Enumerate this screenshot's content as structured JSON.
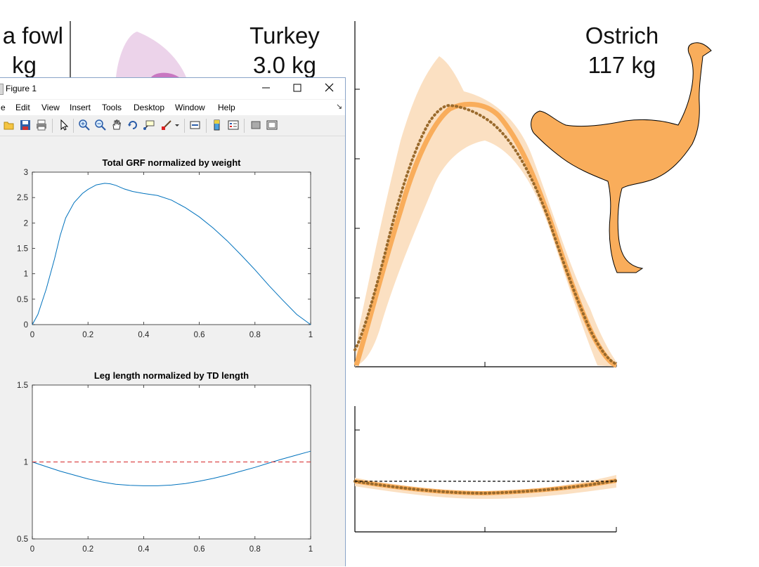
{
  "background": {
    "labels": [
      {
        "name": "guinea-fowl",
        "line1": "a fowl",
        "line2": "kg"
      },
      {
        "name": "turkey",
        "line1": "Turkey",
        "line2": "3.0 kg"
      },
      {
        "name": "ostrich",
        "line1": "Ostrich",
        "line2": "117 kg"
      }
    ],
    "colors": {
      "ostrich_fill": "#f9ad5b",
      "ostrich_band": "#fbe0c2",
      "ostrich_dots": "#9a6a2c",
      "turkey_fill": "#ecd3ea",
      "turkey_core": "#c877c1"
    }
  },
  "window": {
    "title": "Figure 1",
    "controls": [
      "minimize",
      "maximize",
      "close"
    ],
    "menu": [
      "e",
      "Edit",
      "View",
      "Insert",
      "Tools",
      "Desktop",
      "Window",
      "Help"
    ],
    "toolbar_icons": [
      "open-folder-icon",
      "save-icon",
      "print-icon",
      "pointer-icon",
      "zoom-in-icon",
      "zoom-out-icon",
      "pan-hand-icon",
      "rotate-3d-icon",
      "data-cursor-icon",
      "brush-icon",
      "brush-dropdown-icon",
      "link-plot-icon",
      "insert-colorbar-icon",
      "insert-legend-icon",
      "hide-plot-tools-icon",
      "show-plot-tools-icon"
    ]
  },
  "chart_data": [
    {
      "type": "line",
      "title": "Total GRF normalized by weight",
      "xlabel": "",
      "ylabel": "",
      "xlim": [
        0,
        1
      ],
      "ylim": [
        0,
        3
      ],
      "xticks": [
        "0",
        "0.2",
        "0.4",
        "0.6",
        "0.8",
        "1"
      ],
      "yticks": [
        "0",
        "0.5",
        "1",
        "1.5",
        "2",
        "2.5",
        "3"
      ],
      "series": [
        {
          "color": "#0072bd",
          "x": [
            0,
            0.02,
            0.05,
            0.08,
            0.1,
            0.12,
            0.15,
            0.18,
            0.2,
            0.23,
            0.26,
            0.28,
            0.3,
            0.33,
            0.36,
            0.4,
            0.45,
            0.5,
            0.55,
            0.6,
            0.65,
            0.7,
            0.75,
            0.8,
            0.85,
            0.9,
            0.95,
            1.0
          ],
          "y": [
            0,
            0.2,
            0.7,
            1.3,
            1.75,
            2.1,
            2.4,
            2.58,
            2.66,
            2.75,
            2.78,
            2.77,
            2.74,
            2.67,
            2.62,
            2.58,
            2.54,
            2.45,
            2.3,
            2.12,
            1.9,
            1.65,
            1.37,
            1.08,
            0.77,
            0.48,
            0.2,
            0
          ]
        }
      ]
    },
    {
      "type": "line",
      "title": "Leg length normalized by TD length",
      "xlabel": "",
      "ylabel": "",
      "xlim": [
        0,
        1
      ],
      "ylim": [
        0.5,
        1.5
      ],
      "xticks": [
        "0",
        "0.2",
        "0.4",
        "0.6",
        "0.8",
        "1"
      ],
      "yticks": [
        "0.5",
        "1",
        "1.5"
      ],
      "series": [
        {
          "color": "#0072bd",
          "x": [
            0,
            0.05,
            0.1,
            0.15,
            0.2,
            0.25,
            0.3,
            0.35,
            0.4,
            0.45,
            0.5,
            0.55,
            0.6,
            0.65,
            0.7,
            0.75,
            0.8,
            0.85,
            0.9,
            0.95,
            1.0
          ],
          "y": [
            1.0,
            0.97,
            0.94,
            0.915,
            0.89,
            0.87,
            0.855,
            0.848,
            0.845,
            0.845,
            0.85,
            0.86,
            0.875,
            0.893,
            0.915,
            0.94,
            0.965,
            0.993,
            1.02,
            1.045,
            1.07
          ]
        },
        {
          "color": "#d62728",
          "dashed": true,
          "x": [
            0,
            1
          ],
          "y": [
            1.0,
            1.0
          ]
        }
      ]
    }
  ]
}
